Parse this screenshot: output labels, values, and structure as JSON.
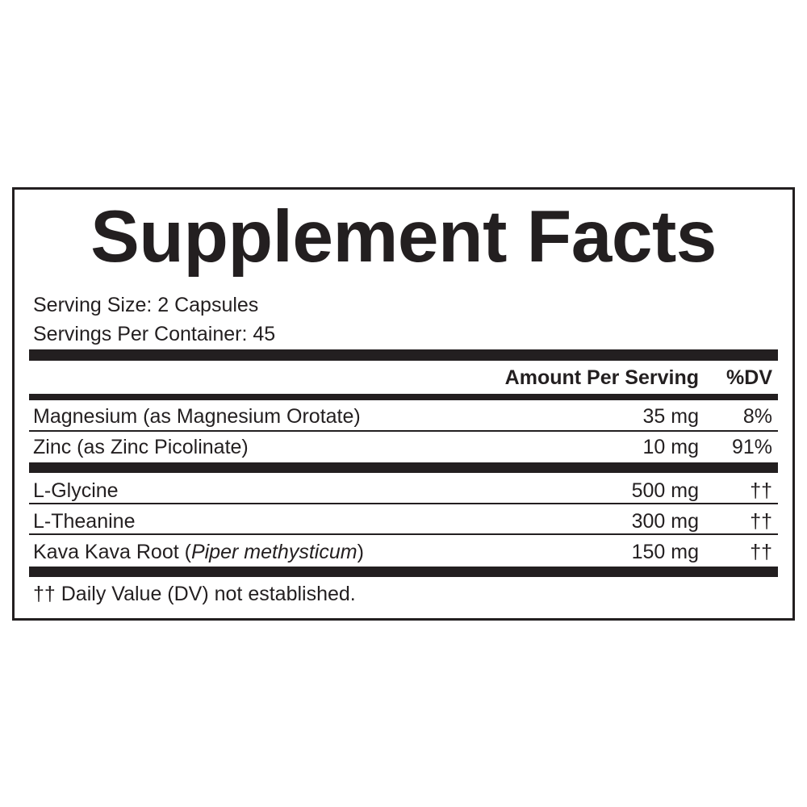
{
  "title": "Supplement Facts",
  "serving_size": "Serving Size: 2 Capsules",
  "servings_per_container": "Servings Per Container: 45",
  "header": {
    "amount": "Amount Per Serving",
    "dv": "%DV"
  },
  "rows": [
    {
      "name": "Magnesium (as Magnesium Orotate)",
      "amount": "35 mg",
      "dv": "8%"
    },
    {
      "name": "Zinc (as Zinc Picolinate)",
      "amount": "10 mg",
      "dv": "91%"
    },
    {
      "name": "L-Glycine",
      "amount": "500 mg",
      "dv": "††"
    },
    {
      "name": "L-Theanine",
      "amount": "300 mg",
      "dv": "††"
    },
    {
      "name_prefix": "Kava Kava Root (",
      "name_italic": "Piper methysticum",
      "name_suffix": ")",
      "amount": "150 mg",
      "dv": "††"
    }
  ],
  "footnote": "†† Daily Value (DV) not established."
}
